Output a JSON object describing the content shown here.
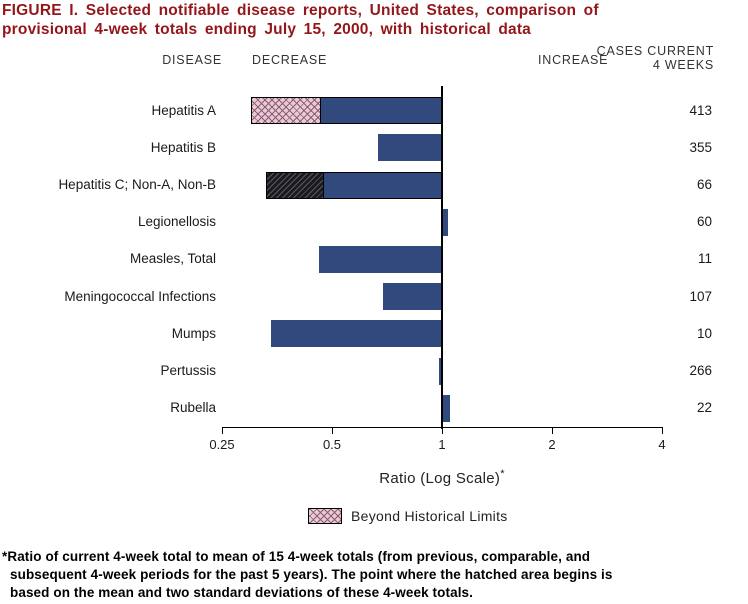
{
  "palette": {
    "title_red": "#94161A",
    "bar_blue": "#32497E",
    "hatch_pink_bg": "#E7CAD3",
    "hatch_pink_line": "#8E5C74",
    "hatch_dark_bg": "#1A1A20",
    "text_dark": "#1A1A1A"
  },
  "title": {
    "line1": "FIGURE I. Selected notifiable disease reports, United States, comparison of",
    "line2": "provisional 4-week totals ending July 15, 2000, with historical data"
  },
  "headers": {
    "disease": "DISEASE",
    "decrease": "DECREASE",
    "increase": "INCREASE",
    "cases_line1": "CASES CURRENT",
    "cases_line2": "4 WEEKS"
  },
  "chart_data": {
    "type": "bar",
    "orientation": "horizontal",
    "x_scale": "log",
    "xlim": [
      0.25,
      4
    ],
    "xticks": [
      0.25,
      0.5,
      1,
      2,
      4
    ],
    "xtick_labels": [
      "0.25",
      "0.5",
      "1",
      "2",
      "4"
    ],
    "xlabel": "Ratio (Log Scale)",
    "xlabel_marker": "*",
    "baseline_ratio": 1,
    "legend_label": "Beyond Historical Limits",
    "series": [
      {
        "disease": "Hepatitis A",
        "cases": 413,
        "ratio": 0.3,
        "beyond_historical_limits": true,
        "historical_limit": 0.46,
        "hatch": "pink"
      },
      {
        "disease": "Hepatitis B",
        "cases": 355,
        "ratio": 0.67,
        "beyond_historical_limits": false
      },
      {
        "disease": "Hepatitis C; Non-A, Non-B",
        "cases": 66,
        "ratio": 0.33,
        "beyond_historical_limits": true,
        "historical_limit": 0.47,
        "hatch": "dark"
      },
      {
        "disease": "Legionellosis",
        "cases": 60,
        "ratio": 1.04,
        "beyond_historical_limits": false
      },
      {
        "disease": "Measles, Total",
        "cases": 11,
        "ratio": 0.46,
        "beyond_historical_limits": false
      },
      {
        "disease": "Meningococcal Infections",
        "cases": 107,
        "ratio": 0.69,
        "beyond_historical_limits": false
      },
      {
        "disease": "Mumps",
        "cases": 10,
        "ratio": 0.34,
        "beyond_historical_limits": false
      },
      {
        "disease": "Pertussis",
        "cases": 266,
        "ratio": 0.98,
        "beyond_historical_limits": false
      },
      {
        "disease": "Rubella",
        "cases": 22,
        "ratio": 1.05,
        "beyond_historical_limits": false
      }
    ]
  },
  "footnote": {
    "lines": [
      "*Ratio of current 4-week total to mean of 15 4-week totals (from previous, comparable, and",
      "subsequent 4-week periods for the past 5 years). The point where the hatched area begins is",
      "based on the mean and two standard deviations of these 4-week totals."
    ]
  }
}
